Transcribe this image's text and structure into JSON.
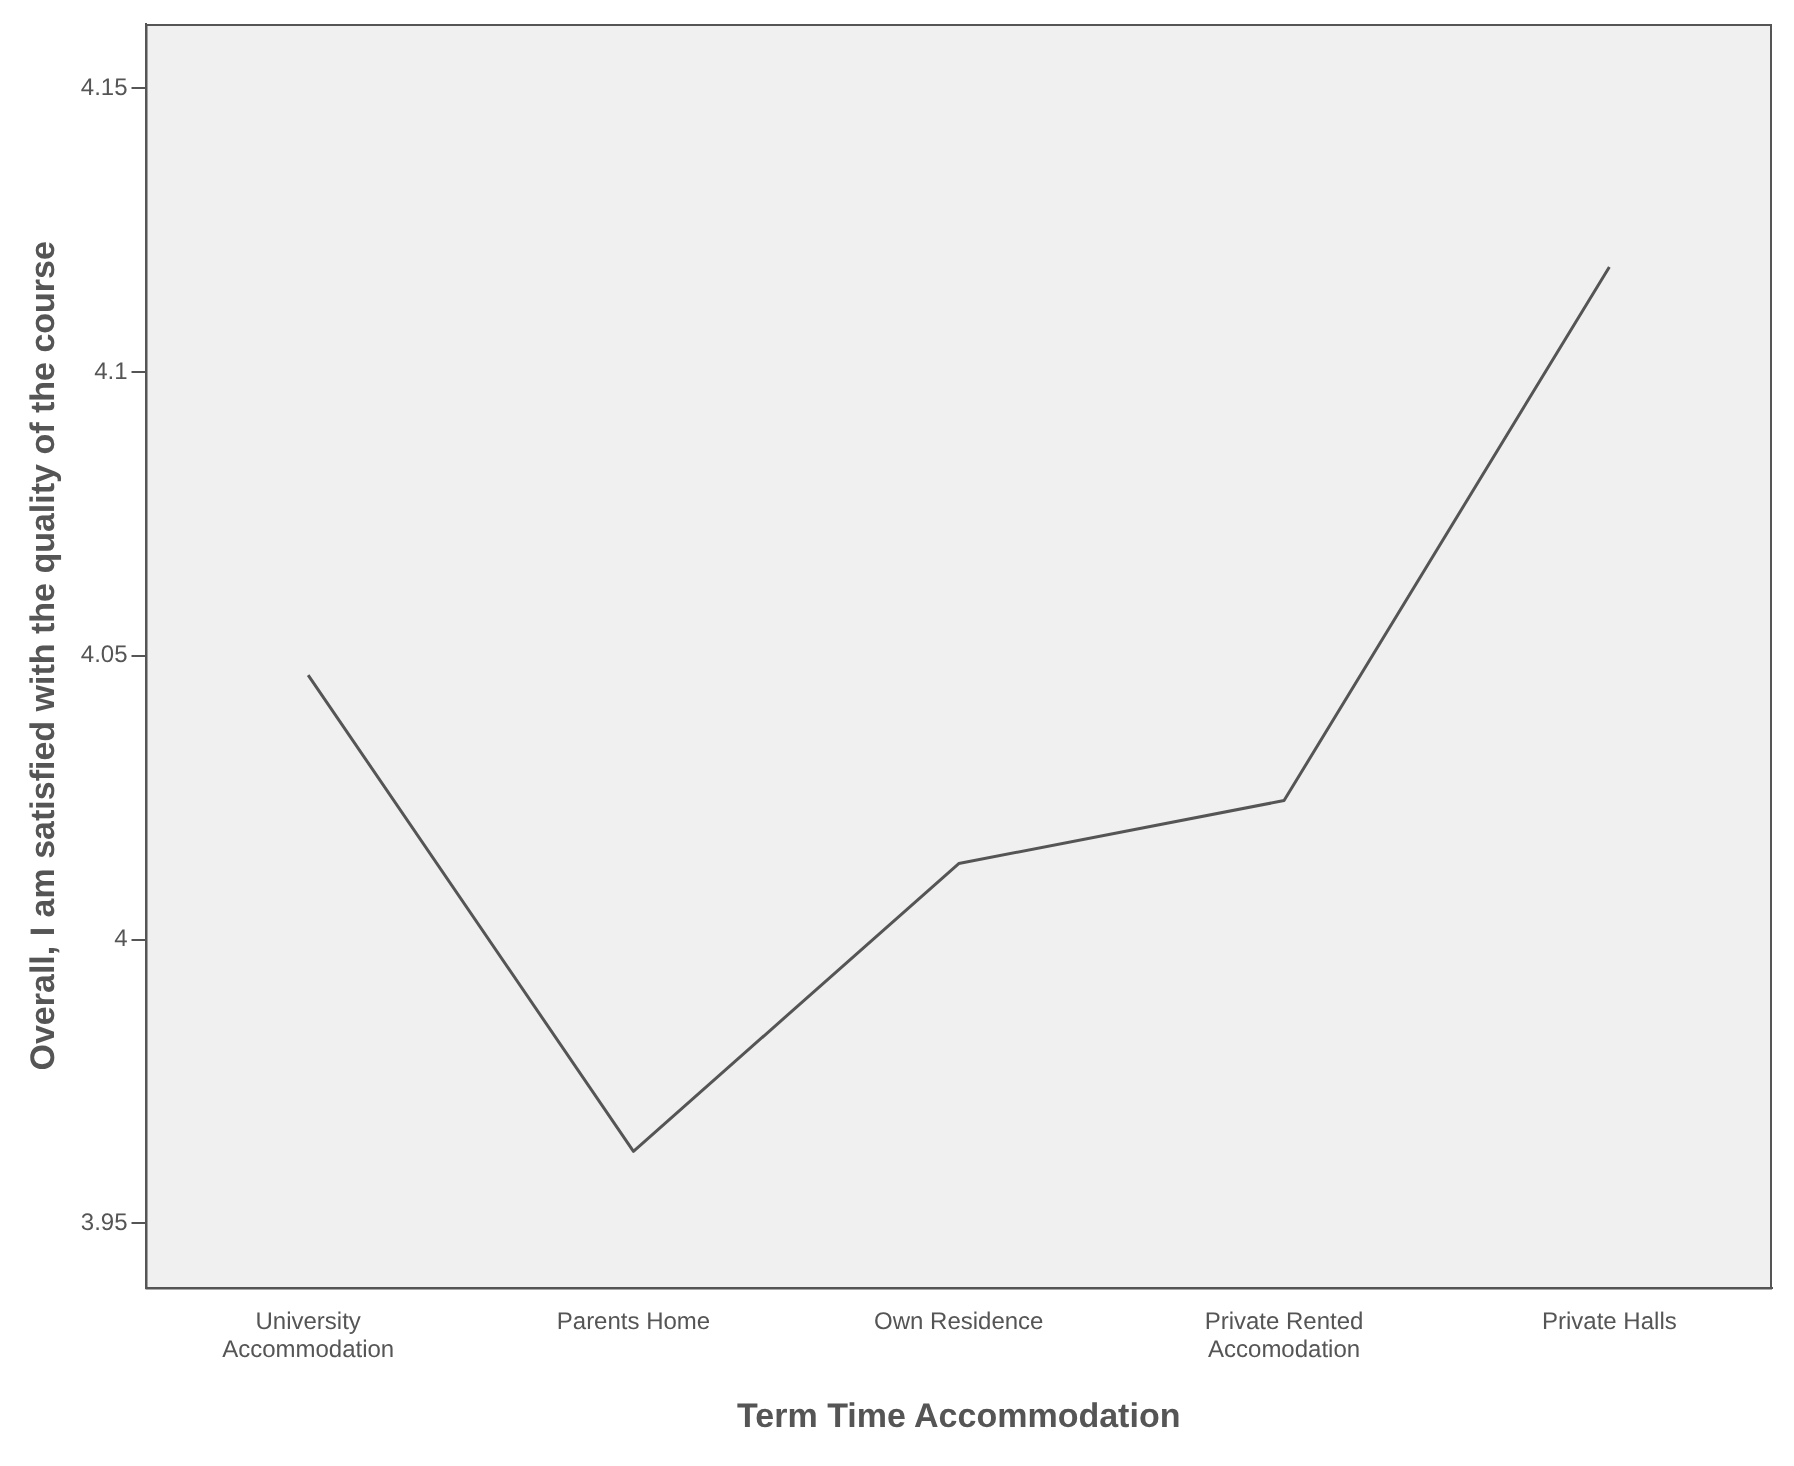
{
  "chart_data": {
    "type": "line",
    "xlabel": "Term Time Accommodation",
    "ylabel": "Overall, I am satisfied with the quality of the course",
    "categories": [
      "University Accommodation",
      "Parents Home",
      "Own Residence",
      "Private Rented Accomodation",
      "Private Halls"
    ],
    "series": [
      {
        "color": "#555555",
        "values": [
          4.0466,
          3.9627,
          4.0134,
          4.0245,
          4.1185
        ]
      }
    ],
    "ylim": [
      3.9387,
      4.1613
    ],
    "yticks": [
      3.95,
      4,
      4.05,
      4.1,
      4.15
    ],
    "grid": false,
    "legend": false,
    "marker": "none",
    "line_style": "solid"
  }
}
